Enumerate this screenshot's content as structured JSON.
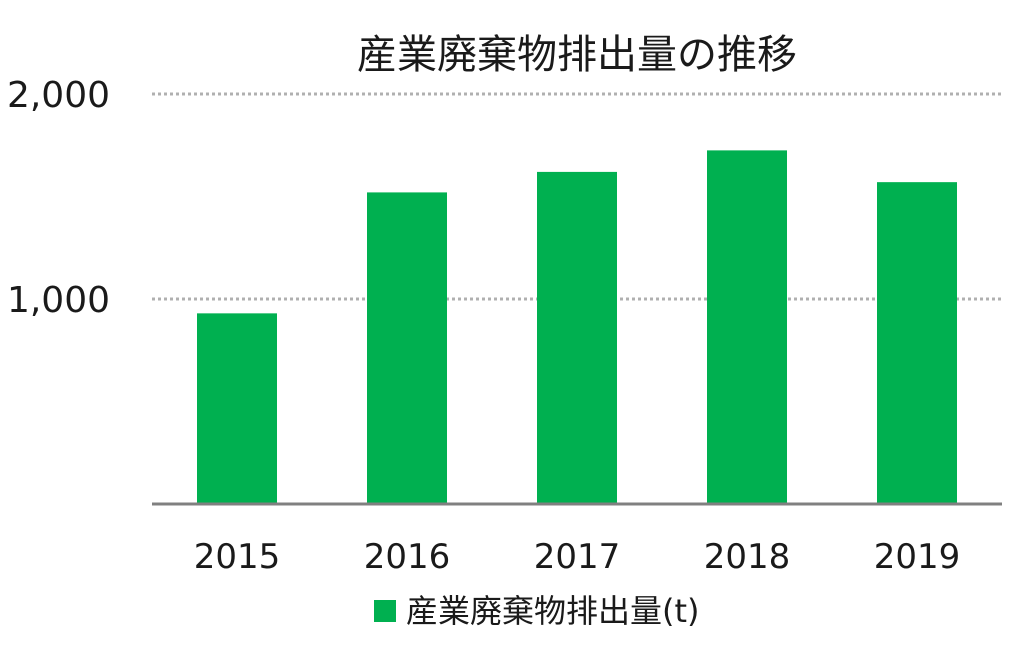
{
  "chart_data": {
    "type": "bar",
    "title": "産業廃棄物排出量の推移",
    "categories": [
      "2015",
      "2016",
      "2017",
      "2018",
      "2019"
    ],
    "series": [
      {
        "name": "産業廃棄物排出量(t)",
        "values": [
          930,
          1520,
          1620,
          1725,
          1570
        ],
        "color": "#00b050"
      }
    ],
    "ylim": [
      0,
      2000
    ],
    "yticks": [
      1000,
      2000
    ],
    "ytick_labels": [
      "1,000",
      "2,000"
    ],
    "grid": true,
    "grid_style": "dotted",
    "legend_position": "bottom",
    "colors": {
      "bar": "#00b050",
      "grid": "#b0b0b0",
      "baseline": "#808080",
      "text": "#1a1a1a"
    }
  }
}
